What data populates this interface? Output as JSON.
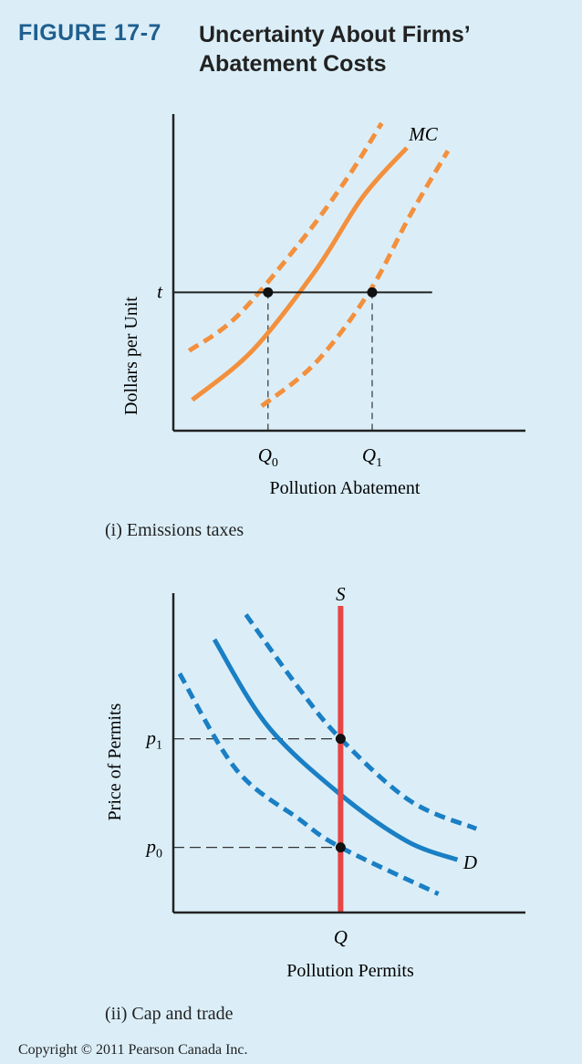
{
  "figure": {
    "label": "FIGURE 17-7",
    "title": "Uncertainty About Firms’ Abatement Costs"
  },
  "copyright": "Copyright © 2011 Pearson Canada Inc.",
  "colors": {
    "background": "#dbeef8",
    "mc_curve": "#f3903d",
    "demand_curve": "#1a7fc4",
    "supply_line": "#e84545",
    "axis": "#222222"
  },
  "chart_data": [
    {
      "type": "line",
      "caption": "(i) Emissions taxes",
      "xlabel": "Pollution Abatement",
      "ylabel": "Dollars per Unit",
      "x_ticks": [
        {
          "label": "Q",
          "sub": "0",
          "x": 0.3
        },
        {
          "label": "Q",
          "sub": "1",
          "x": 0.63
        }
      ],
      "y_ticks": [
        {
          "label": "t",
          "y": 0.45
        }
      ],
      "series": [
        {
          "name": "MC",
          "style": "solid",
          "color": "#f3903d",
          "points": [
            [
              0.06,
              0.1
            ],
            [
              0.25,
              0.26
            ],
            [
              0.45,
              0.52
            ],
            [
              0.6,
              0.76
            ],
            [
              0.74,
              0.92
            ]
          ]
        },
        {
          "style": "dashed",
          "color": "#f3903d",
          "points": [
            [
              0.05,
              0.26
            ],
            [
              0.2,
              0.37
            ],
            [
              0.4,
              0.61
            ],
            [
              0.55,
              0.82
            ],
            [
              0.66,
              1.0
            ]
          ]
        },
        {
          "style": "dashed",
          "color": "#f3903d",
          "points": [
            [
              0.28,
              0.08
            ],
            [
              0.45,
              0.22
            ],
            [
              0.62,
              0.45
            ],
            [
              0.75,
              0.7
            ],
            [
              0.87,
              0.91
            ]
          ]
        }
      ],
      "horizontal_line": {
        "label": "t",
        "y": 0.45,
        "x_end": 0.82
      },
      "points": [
        [
          0.3,
          0.45
        ],
        [
          0.63,
          0.45
        ]
      ],
      "guides": "dashed vertical lines from intersections to x-axis",
      "grid": false
    },
    {
      "type": "line",
      "caption": "(ii) Cap and trade",
      "xlabel": "Pollution Permits",
      "ylabel": "Price of Permits",
      "x_ticks": [
        {
          "label": "Q",
          "x": 0.53
        }
      ],
      "y_ticks": [
        {
          "label": "p",
          "sub": "1",
          "y": 0.56
        },
        {
          "label": "p",
          "sub": "0",
          "y": 0.21
        }
      ],
      "series": [
        {
          "name": "D",
          "style": "solid",
          "color": "#1a7fc4",
          "points": [
            [
              0.13,
              0.88
            ],
            [
              0.3,
              0.6
            ],
            [
              0.53,
              0.38
            ],
            [
              0.74,
              0.23
            ],
            [
              0.9,
              0.17
            ]
          ]
        },
        {
          "style": "dashed",
          "color": "#1a7fc4",
          "points": [
            [
              0.02,
              0.77
            ],
            [
              0.2,
              0.46
            ],
            [
              0.4,
              0.3
            ],
            [
              0.53,
              0.21
            ],
            [
              0.84,
              0.06
            ]
          ]
        },
        {
          "style": "dashed",
          "color": "#1a7fc4",
          "points": [
            [
              0.23,
              0.96
            ],
            [
              0.4,
              0.72
            ],
            [
              0.53,
              0.56
            ],
            [
              0.75,
              0.36
            ],
            [
              0.96,
              0.27
            ]
          ]
        }
      ],
      "vertical_line": {
        "label": "S",
        "x": 0.53,
        "color": "#e84545"
      },
      "points": [
        [
          0.53,
          0.56
        ],
        [
          0.53,
          0.21
        ]
      ],
      "guides": "dashed horizontal lines from intersections to y-axis",
      "grid": false
    }
  ]
}
